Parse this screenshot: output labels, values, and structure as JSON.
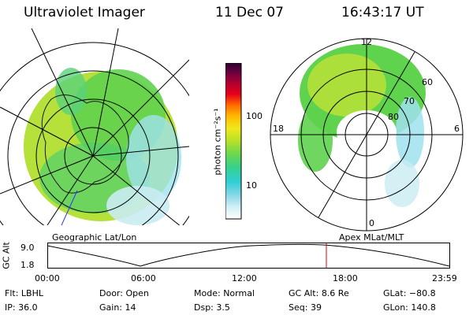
{
  "header": {
    "instrument": "Ultraviolet Imager",
    "date": "11 Dec 07",
    "time": "16:43:17 UT"
  },
  "left_panel": {
    "label": "Geographic Lat/Lon"
  },
  "right_panel": {
    "label": "Apex MLat/MLT",
    "mlt_labels": {
      "top": "12",
      "left": "18",
      "right": "6",
      "bottom": "0"
    },
    "lat_labels": [
      "60",
      "70",
      "80"
    ]
  },
  "colorbar": {
    "unit": "photon cm⁻²s⁻¹",
    "ticks": [
      "100",
      "10"
    ],
    "colors": [
      "#ffffff",
      "#cfeef4",
      "#7fd6e6",
      "#2ecfd6",
      "#35d08c",
      "#6fd84a",
      "#b8e02a",
      "#f0e81c",
      "#ffb800",
      "#ff6a00",
      "#e8001a",
      "#b00030",
      "#6a0040",
      "#2a0030"
    ]
  },
  "timeline": {
    "axis_title": "GC Alt",
    "y_ticks": [
      "9.0",
      "1.8"
    ],
    "x_ticks": [
      "00:00",
      "06:00",
      "12:00",
      "18:00",
      "23:59"
    ],
    "current_marker_color": "#e00000"
  },
  "info": {
    "row1": [
      {
        "label": "Flt:",
        "value": "LBHL"
      },
      {
        "label": "Door:",
        "value": "Open"
      },
      {
        "label": "Mode:",
        "value": "Normal"
      },
      {
        "label": "GC Alt:",
        "value": "8.6 Re"
      },
      {
        "label": "GLat:",
        "value": "−80.8"
      }
    ],
    "row2": [
      {
        "label": "IP:",
        "value": "36.0"
      },
      {
        "label": "Gain:",
        "value": "14"
      },
      {
        "label": "Dsp:",
        "value": "3.5"
      },
      {
        "label": "Seq:",
        "value": "39"
      },
      {
        "label": "GLon:",
        "value": "140.8"
      }
    ]
  }
}
